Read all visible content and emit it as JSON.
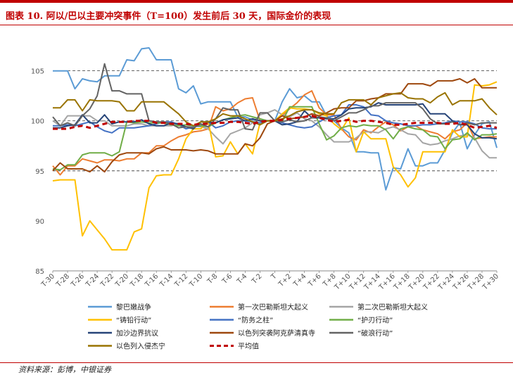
{
  "title": "图表 10. 阿以/巴以主要冲突事件（T=100）发生前后 30 天，国际金价的表现",
  "source": "资料来源：彭博，中银证券",
  "chart_data": {
    "type": "line",
    "ylim": [
      85,
      108
    ],
    "yticks": [
      85,
      90,
      95,
      100,
      105
    ],
    "gridlines": [
      95,
      100,
      105
    ],
    "grid": "dashed horizontal at 95, 100, 105",
    "legend_position": "bottom",
    "x": [
      -30,
      -29,
      -28,
      -27,
      -26,
      -25,
      -24,
      -23,
      -22,
      -21,
      -20,
      -19,
      -18,
      -17,
      -16,
      -15,
      -14,
      -13,
      -12,
      -11,
      -10,
      -9,
      -8,
      -7,
      -6,
      -5,
      -4,
      -3,
      -2,
      -1,
      0,
      1,
      2,
      3,
      4,
      5,
      6,
      7,
      8,
      9,
      10,
      11,
      12,
      13,
      14,
      15,
      16,
      17,
      18,
      19,
      20,
      21,
      22,
      23,
      24,
      25,
      26,
      27,
      28,
      29,
      30
    ],
    "xticks": [
      "T-30",
      "T-28",
      "T-26",
      "T-24",
      "T-22",
      "T-20",
      "T-18",
      "T-16",
      "T-14",
      "T-12",
      "T-10",
      "T-8",
      "T-6",
      "T-4",
      "T-2",
      "T",
      "T+2",
      "T+4",
      "T+6",
      "T+8",
      "T+10",
      "T+12",
      "T+14",
      "T+16",
      "T+18",
      "T+20",
      "T+22",
      "T+24",
      "T+26",
      "T+28",
      "T+30"
    ],
    "series": [
      {
        "name": "黎巴嫩战争",
        "color": "#5b9bd5",
        "style": "solid",
        "values": [
          105,
          105,
          105,
          103.2,
          104.2,
          104,
          103.9,
          104.5,
          104.5,
          104.5,
          106.1,
          106,
          107.2,
          107.3,
          106.1,
          106.1,
          106.1,
          103.2,
          102.8,
          103.5,
          101.7,
          101.9,
          101.9,
          101.9,
          101.9,
          100.4,
          100.4,
          100.1,
          100,
          100,
          100,
          101.9,
          103.2,
          102.3,
          102.5,
          101.9,
          101.9,
          100.5,
          100,
          99.3,
          98.8,
          96.9,
          96.9,
          96.8,
          96.8,
          93.1,
          95.3,
          95.2,
          97.2,
          95.5,
          95.5,
          95.8,
          95.8,
          97.1,
          98.8,
          99.8,
          97.2,
          98.6,
          99.7,
          99.9,
          97.3
        ]
      },
      {
        "name": "第一次巴勒斯坦大起义",
        "color": "#ed7d31",
        "style": "solid",
        "values": [
          95.5,
          94.6,
          95.5,
          95.5,
          96.2,
          96,
          95.8,
          96.1,
          96.1,
          96,
          96.2,
          96.2,
          96.8,
          96.8,
          97.5,
          97.5,
          98,
          98.4,
          98.6,
          98.9,
          99,
          99.2,
          101.4,
          101,
          101.2,
          101.8,
          102.2,
          102.3,
          100,
          100,
          100,
          100.5,
          101.2,
          101.8,
          102.6,
          103,
          101.3,
          100.6,
          100.6,
          99.2,
          98.4,
          98.1,
          99.1,
          98.8,
          99.4,
          99.9,
          99.6,
          99,
          99.4,
          99.5,
          99.1,
          98.9,
          98.7,
          98.2,
          98.9,
          99.1,
          99.8,
          98.2,
          98.3,
          98.4,
          98.4
        ]
      },
      {
        "name": "第二次巴勒斯坦大起义",
        "color": "#a5a5a5",
        "style": "solid",
        "values": [
          100,
          99.5,
          100.5,
          100.5,
          100.5,
          100.5,
          100,
          100,
          99.5,
          99.5,
          99.5,
          99.7,
          99.7,
          99.5,
          99.5,
          99.5,
          99.5,
          99.7,
          99.4,
          99.5,
          99.4,
          99.2,
          98.4,
          97.7,
          98.7,
          99,
          99.3,
          99.8,
          100.6,
          100.8,
          101.1,
          100.6,
          100.4,
          100.8,
          100.2,
          100,
          99.4,
          98.6,
          97.9,
          97.9,
          97.9,
          98.3,
          98.9,
          98.9,
          98.8,
          99.2,
          99.4,
          99.1,
          98.7,
          98.6,
          97.8,
          97.6,
          97.7,
          98,
          98.2,
          98.5,
          98.6,
          98.3,
          97,
          96.3,
          96.3
        ]
      },
      {
        "name": "“铸铅行动”",
        "color": "#ffc000",
        "style": "solid",
        "values": [
          94,
          94.1,
          94.1,
          94.1,
          88.5,
          90,
          89.1,
          88.2,
          87.1,
          87.1,
          87.1,
          88.9,
          89.2,
          93.3,
          94.5,
          94.6,
          94.6,
          96.2,
          98.2,
          99.2,
          99.2,
          99.9,
          96.4,
          96.5,
          97.9,
          96.7,
          97.7,
          96.7,
          99.8,
          100,
          100,
          100.7,
          101.3,
          101.2,
          101.2,
          101.1,
          100.7,
          100.5,
          99.7,
          99.1,
          100.3,
          96.9,
          98.9,
          98.2,
          98.2,
          98.2,
          95.4,
          94.6,
          93.4,
          94.3,
          96.9,
          96.9,
          96.9,
          96.9,
          99.1,
          98.4,
          98.4,
          103.6,
          103.5,
          103.6,
          103.9
        ]
      },
      {
        "name": "“防务之柱”",
        "color": "#4472c4",
        "style": "solid",
        "values": [
          99.5,
          99.5,
          99.6,
          99.5,
          99.7,
          99.9,
          99.4,
          99,
          98.8,
          99.3,
          99.3,
          99.3,
          99.4,
          99.5,
          99.7,
          99.9,
          99.9,
          99.6,
          99.2,
          99.4,
          99.5,
          99.9,
          99.3,
          99.5,
          99.9,
          100,
          100,
          99.9,
          99.8,
          100,
          100,
          99.8,
          99.6,
          99.4,
          99.3,
          99.4,
          99.9,
          100.3,
          100.5,
          100.6,
          101.6,
          101.6,
          101.4,
          100.6,
          100.5,
          100,
          99.8,
          99.7,
          99.5,
          99.5,
          99.6,
          99.6,
          99.7,
          99.8,
          100,
          99.9,
          99.9,
          99.7,
          99.3,
          99.2,
          99.2
        ]
      },
      {
        "name": "“护刃行动”",
        "color": "#70ad47",
        "style": "solid",
        "values": [
          95.2,
          95.1,
          95.6,
          95.6,
          96.6,
          96.8,
          96.8,
          96.8,
          96.5,
          96.9,
          99.9,
          99.8,
          99.9,
          99.8,
          99.8,
          99.8,
          99.6,
          99.5,
          99.6,
          99.5,
          99.5,
          99.4,
          99.8,
          100.1,
          100.3,
          100.5,
          100.6,
          100.4,
          100.2,
          100,
          100,
          99.9,
          101.4,
          101.4,
          101.4,
          101.4,
          99.7,
          98.1,
          98.5,
          99.3,
          99.5,
          99.4,
          99.6,
          99.5,
          99.5,
          99.1,
          98.2,
          99.2,
          99.4,
          99.2,
          99.1,
          98.5,
          98.4,
          97.2,
          98.1,
          98.2,
          98.8,
          98.1,
          98.6,
          98.6,
          98.7
        ]
      },
      {
        "name": "加沙边界抗议",
        "color": "#264478",
        "style": "solid",
        "values": [
          99.3,
          99.3,
          99.5,
          99.6,
          100.6,
          99.8,
          99.8,
          100.6,
          99.7,
          99.9,
          99.9,
          99.9,
          100.1,
          99.7,
          99.5,
          99.5,
          99.8,
          99.7,
          99.4,
          99.2,
          99.9,
          99.9,
          99.8,
          100.1,
          100.2,
          100.3,
          100,
          100.2,
          100,
          100,
          100,
          99.6,
          99.7,
          99.9,
          101,
          100.3,
          100.3,
          100.2,
          100.2,
          100.6,
          101.2,
          101.3,
          101.3,
          101.4,
          101.8,
          101.6,
          101.6,
          101.6,
          101.6,
          101.6,
          101.7,
          100.7,
          100.7,
          100.7,
          100,
          99.6,
          99.6,
          98.7,
          98.3,
          98.3,
          98.2
        ]
      },
      {
        "name": "以色列突袭阿克萨清真寺",
        "color": "#9e480e",
        "style": "solid",
        "values": [
          95,
          95.8,
          95.2,
          95.2,
          95.2,
          94.9,
          95.5,
          94.9,
          95.9,
          96.6,
          96.8,
          96.8,
          96.8,
          96.7,
          97.2,
          97.4,
          97.1,
          97.1,
          97.1,
          97,
          97.1,
          97,
          96.7,
          96.7,
          96.7,
          96.7,
          97.7,
          97.5,
          98.3,
          99.7,
          100,
          100.5,
          100.2,
          100.3,
          100.4,
          100.7,
          100.5,
          100.8,
          101.2,
          101.3,
          101.3,
          102,
          102,
          102.2,
          102.3,
          102.7,
          102.7,
          102.7,
          103.7,
          103.7,
          103.7,
          103.5,
          104,
          104,
          104,
          104.2,
          103.8,
          104.2,
          103.3,
          103.3,
          103.3
        ]
      },
      {
        "name": "“破浪行动”",
        "color": "#636363",
        "style": "solid",
        "values": [
          100.4,
          99.5,
          99.8,
          99.5,
          100.5,
          101.2,
          102.5,
          105.7,
          103,
          103,
          102.7,
          102.7,
          102.7,
          100,
          99.9,
          99.9,
          99.7,
          99.3,
          99.4,
          99.3,
          99.7,
          99.4,
          100.2,
          101.3,
          101.1,
          101.1,
          99.2,
          99.1,
          100.8,
          100.8,
          100,
          99.9,
          100.1,
          99.9,
          100,
          100.3,
          100.4,
          100.3,
          100,
          100.4,
          100.8,
          100.8,
          101.1,
          101.5,
          101.5,
          101.8,
          101.8,
          101.8,
          101.8,
          101.8,
          101.2,
          100.2,
          99.7,
          99.7,
          99.9,
          99.6,
          99.8,
          99.6,
          99.8,
          99.8,
          99.8
        ]
      },
      {
        "name": "以色列入侵杰宁",
        "color": "#997300",
        "style": "solid",
        "values": [
          101.3,
          101.3,
          102.1,
          102.1,
          101,
          102.1,
          102,
          102,
          102,
          101.9,
          101,
          101,
          101.9,
          101.9,
          101.9,
          101.9,
          101.3,
          100.7,
          99.9,
          99.5,
          99.9,
          99.9,
          100.2,
          100.7,
          100.5,
          100.5,
          100.2,
          99.9,
          99.6,
          100,
          100,
          100.2,
          100.5,
          100.9,
          101.1,
          101.1,
          100.8,
          100.7,
          100.7,
          101.8,
          102.1,
          102.1,
          102.1,
          101.6,
          102.3,
          102.5,
          102.7,
          102.8,
          102.3,
          102.2,
          102.2,
          101.8,
          102.4,
          102.8,
          101.6,
          102,
          102,
          102,
          102.2,
          101.3,
          100.6
        ]
      },
      {
        "name": "平均值",
        "color": "#c00000",
        "style": "dashed",
        "values": [
          99.2,
          99.2,
          99.2,
          99.4,
          99.5,
          99.3,
          99.5,
          99.7,
          99.9,
          99.9,
          99.9,
          100,
          100,
          100,
          99.8,
          99.8,
          99.7,
          99.7,
          99.7,
          99.6,
          99.7,
          99.7,
          99.8,
          99.8,
          99.9,
          99.9,
          99.8,
          99.7,
          99.9,
          100,
          100,
          100.1,
          100.2,
          100.3,
          100.4,
          100.5,
          100.3,
          100.1,
          99.9,
          100,
          100.1,
          99.9,
          100,
          100,
          99.9,
          99.8,
          99.6,
          99.6,
          99.7,
          99.8,
          99.8,
          99.8,
          99.8,
          99.7,
          99.7,
          99.8,
          99.6,
          99.3,
          99.4,
          99.5,
          99.3
        ]
      }
    ]
  }
}
